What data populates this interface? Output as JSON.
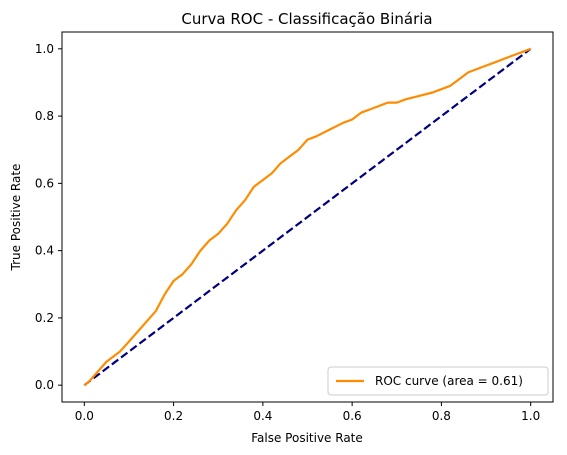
{
  "chart_data": {
    "type": "line",
    "title": "Curva ROC - Classificação Binária",
    "xlabel": "False Positive Rate",
    "ylabel": "True Positive Rate",
    "xlim": [
      -0.05,
      1.05
    ],
    "ylim": [
      -0.05,
      1.05
    ],
    "xticks": [
      "0.0",
      "0.2",
      "0.4",
      "0.6",
      "0.8",
      "1.0"
    ],
    "yticks": [
      "0.0",
      "0.2",
      "0.4",
      "0.6",
      "0.8",
      "1.0"
    ],
    "grid": false,
    "legend_position": "lower-right",
    "series": [
      {
        "name": "ROC curve (area = 0.61)",
        "color": "#ff8c00",
        "style": "solid",
        "x": [
          0.0,
          0.01,
          0.03,
          0.05,
          0.08,
          0.1,
          0.12,
          0.14,
          0.16,
          0.18,
          0.2,
          0.22,
          0.24,
          0.26,
          0.28,
          0.3,
          0.32,
          0.34,
          0.36,
          0.38,
          0.4,
          0.42,
          0.44,
          0.46,
          0.48,
          0.5,
          0.52,
          0.55,
          0.58,
          0.6,
          0.62,
          0.64,
          0.66,
          0.68,
          0.7,
          0.72,
          0.75,
          0.78,
          0.8,
          0.82,
          0.84,
          0.86,
          0.88,
          0.9,
          0.92,
          0.94,
          0.96,
          0.98,
          1.0
        ],
        "y": [
          0.0,
          0.01,
          0.04,
          0.07,
          0.1,
          0.13,
          0.16,
          0.19,
          0.22,
          0.27,
          0.31,
          0.33,
          0.36,
          0.4,
          0.43,
          0.45,
          0.48,
          0.52,
          0.55,
          0.59,
          0.61,
          0.63,
          0.66,
          0.68,
          0.7,
          0.73,
          0.74,
          0.76,
          0.78,
          0.79,
          0.81,
          0.82,
          0.83,
          0.84,
          0.84,
          0.85,
          0.86,
          0.87,
          0.88,
          0.89,
          0.91,
          0.93,
          0.94,
          0.95,
          0.96,
          0.97,
          0.98,
          0.99,
          1.0
        ]
      },
      {
        "name": "",
        "color": "#000080",
        "style": "dashed",
        "x": [
          0.0,
          1.0
        ],
        "y": [
          0.0,
          1.0
        ]
      }
    ]
  }
}
